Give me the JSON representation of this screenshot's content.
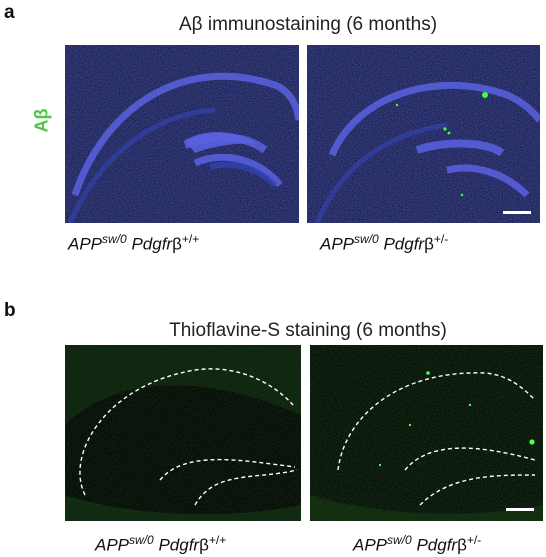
{
  "panels": [
    {
      "label": "a",
      "title": "Aβ immunostaining (6 months)",
      "side_label": "Aβ",
      "side_label_color": "#4fc64a",
      "stain_colors": {
        "background": "#0f1440",
        "tissue": "#3344b8",
        "dense": "#5a62e0",
        "plaque": "#3cff3c"
      },
      "images": [
        {
          "genotype": {
            "gene": "APP",
            "gene_sup": "sw/0",
            "receptor": "Pdgfr",
            "beta": "β",
            "receptor_sup": "+/+"
          }
        },
        {
          "genotype": {
            "gene": "APP",
            "gene_sup": "sw/0",
            "receptor": "Pdgfr",
            "beta": "β",
            "receptor_sup": "+/-"
          },
          "has_scale_bar": true
        }
      ]
    },
    {
      "label": "b",
      "title": "Thioflavine-S staining (6 months)",
      "stain_colors": {
        "background": "#030604",
        "tissue": "#173a16",
        "outline": "#ffffff",
        "plaque": "#52ff52"
      },
      "images": [
        {
          "genotype": {
            "gene": "APP",
            "gene_sup": "sw/0",
            "receptor": "Pdgfr",
            "beta": "β",
            "receptor_sup": "+/+"
          }
        },
        {
          "genotype": {
            "gene": "APP",
            "gene_sup": "sw/0",
            "receptor": "Pdgfr",
            "beta": "β",
            "receptor_sup": "+/-"
          },
          "has_scale_bar": true
        }
      ]
    }
  ]
}
